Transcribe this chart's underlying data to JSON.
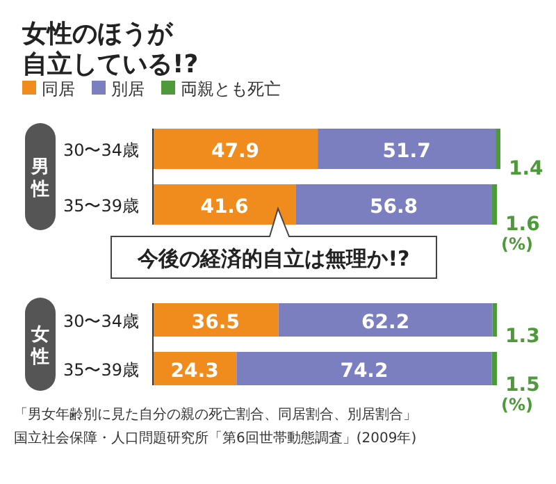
{
  "chart_data": [
    {
      "type": "bar",
      "orientation": "horizontal",
      "stacked": true,
      "data_labels": true,
      "title": "女性のほうが自立している!?",
      "legend": "top left",
      "ylabel": "男性",
      "categories": [
        "30〜34歳",
        "35〜39歳"
      ],
      "series": [
        {
          "name": "同居",
          "color": "#f08c1e",
          "values": [
            47.9,
            41.6
          ]
        },
        {
          "name": "別居",
          "color": "#7b7fc0",
          "values": [
            51.7,
            56.8
          ]
        },
        {
          "name": "両親とも死亡",
          "color": "#4e9a3a",
          "values": [
            1.4,
            1.6
          ]
        }
      ],
      "annotations": [
        "(%)",
        "今後の経済的自立は無理か!?"
      ]
    },
    {
      "type": "bar",
      "orientation": "horizontal",
      "stacked": true,
      "data_labels": true,
      "legend": false,
      "ylabel": "女性",
      "categories": [
        "30〜34歳",
        "35〜39歳"
      ],
      "series": [
        {
          "color": "#f08c1e",
          "values": [
            36.5,
            24.3
          ]
        },
        {
          "color": "#7b7fc0",
          "values": [
            62.2,
            74.2
          ]
        },
        {
          "color": "#4e9a3a",
          "values": [
            1.3,
            1.5
          ]
        }
      ],
      "annotations": [
        "(%)",
        "「男女年齢別に見た自分の親の死亡割合、同居割合、別居割合」",
        "国立社会保障・人口問題研究所「第6回世帯動態調査」(2009年)"
      ]
    }
  ]
}
